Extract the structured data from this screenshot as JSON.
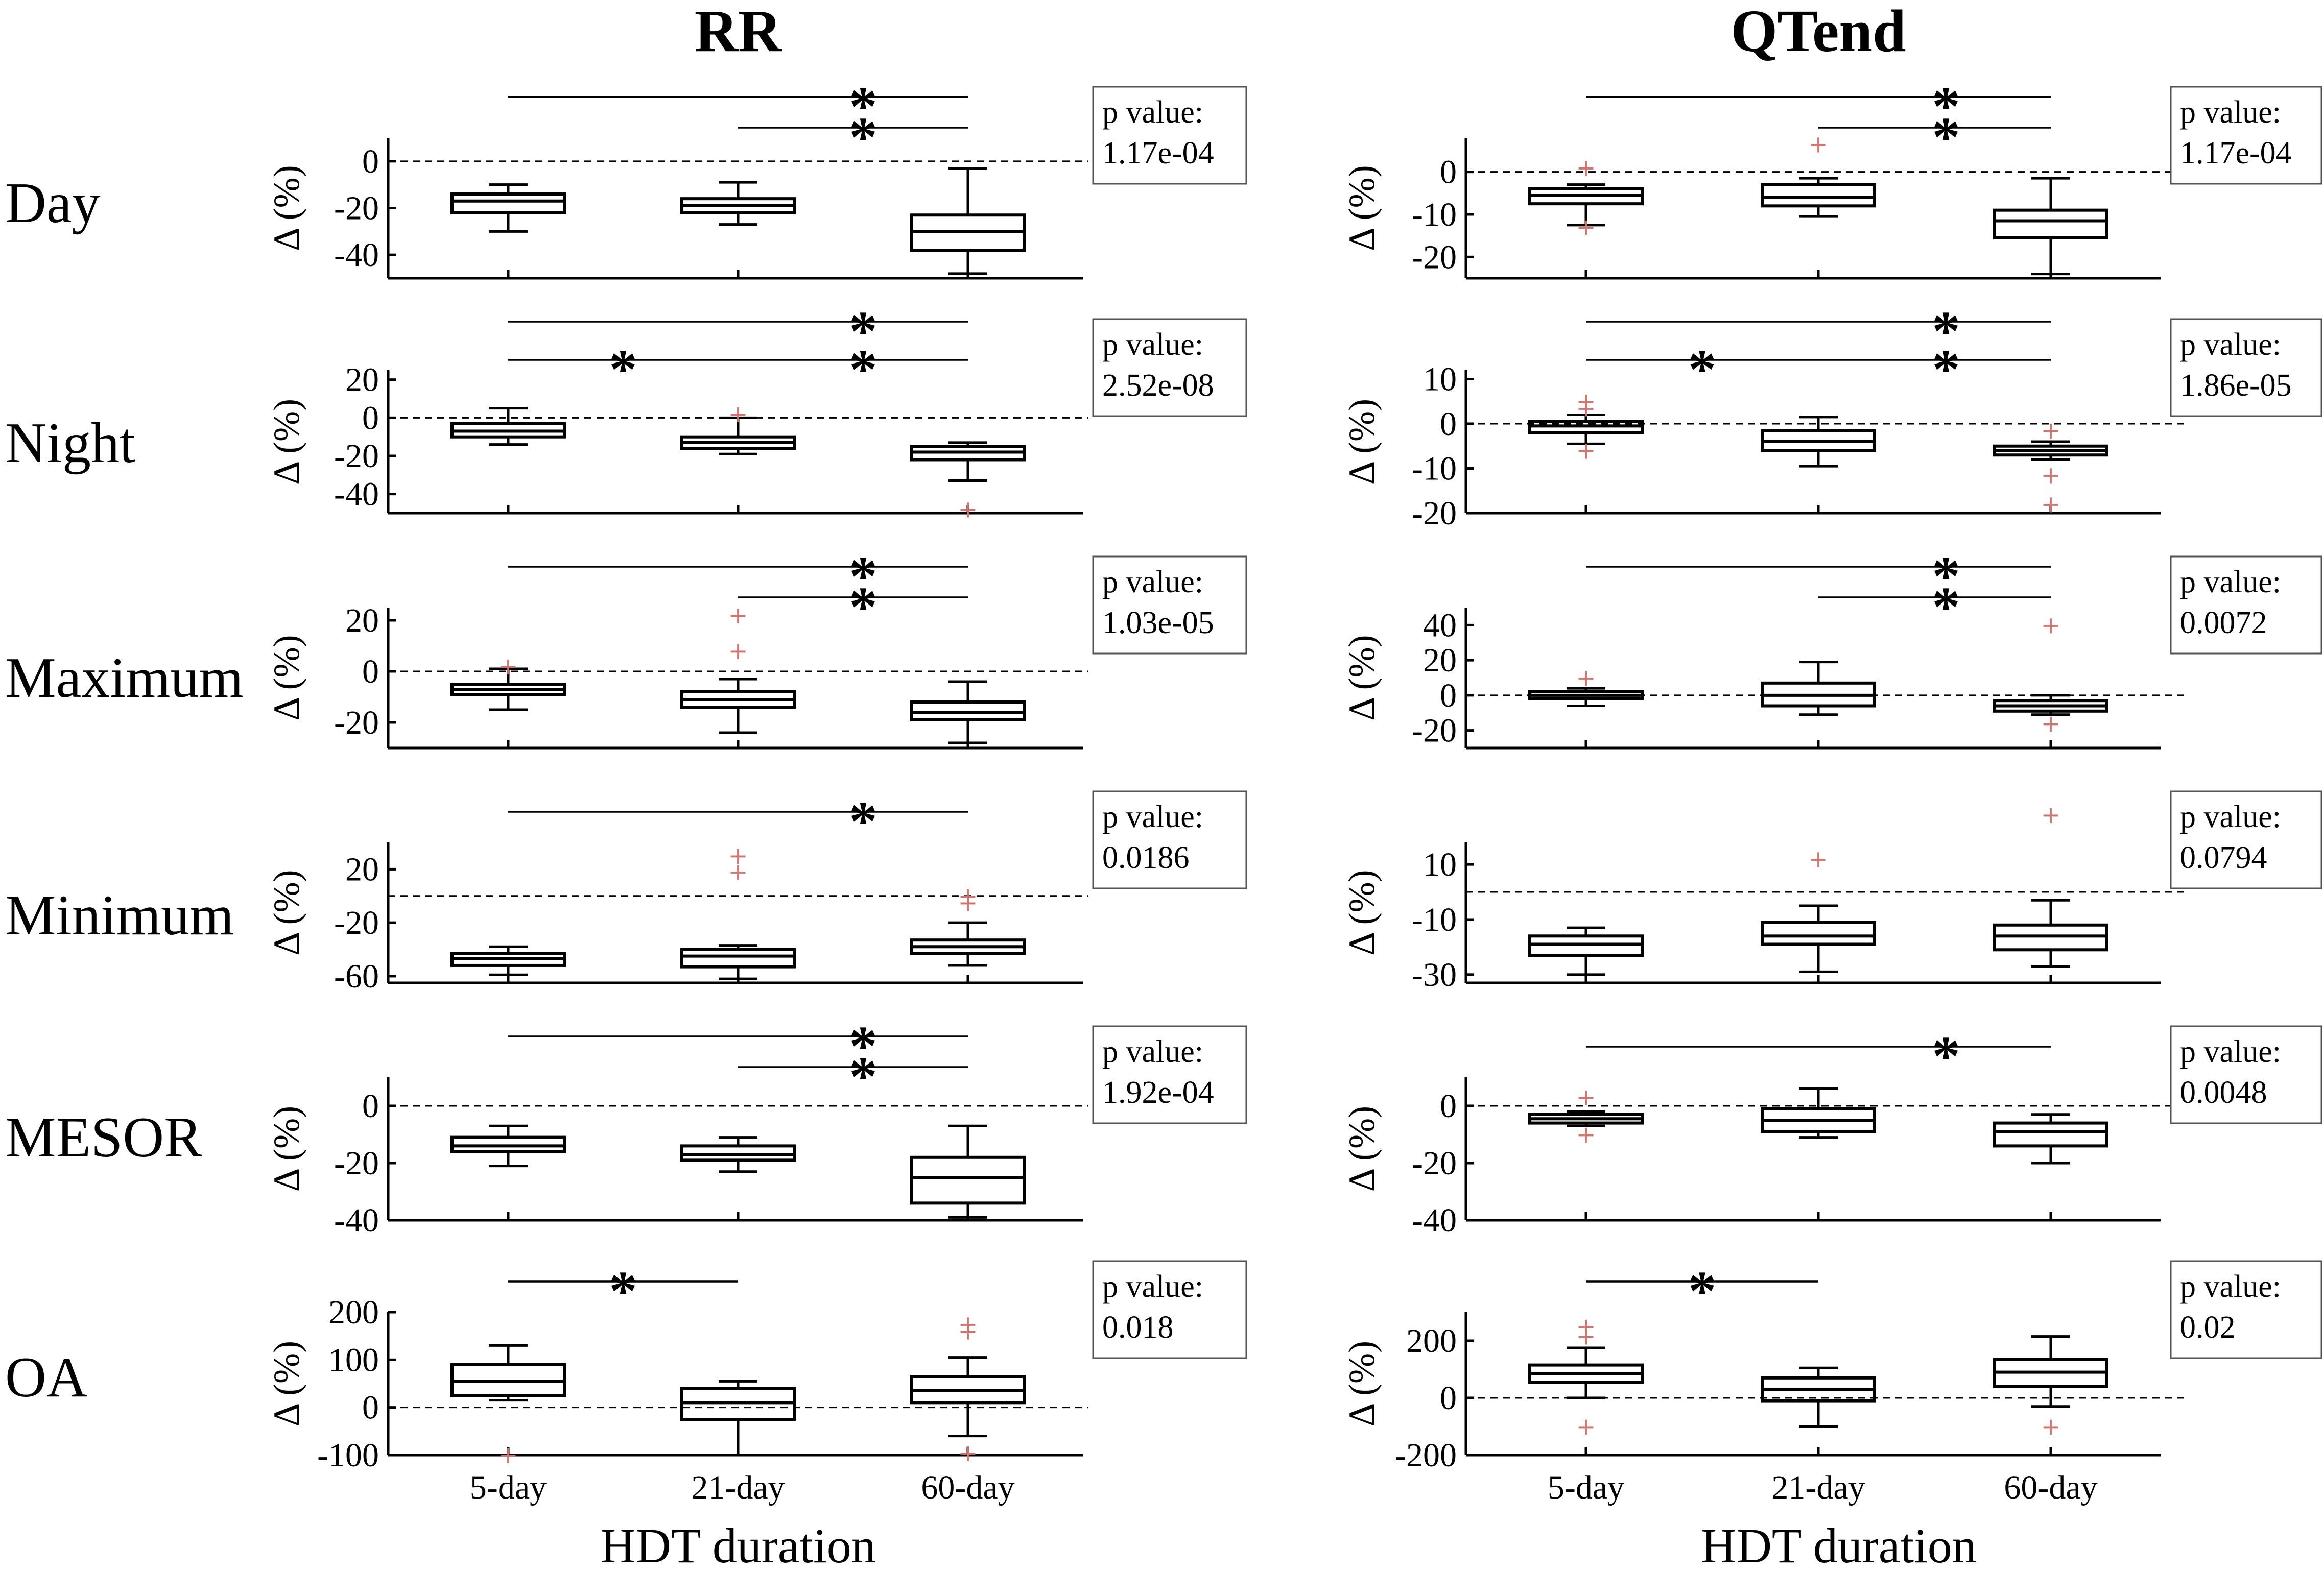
{
  "titles": {
    "left": "RR",
    "right": "QTend"
  },
  "row_labels": [
    "Day",
    "Night",
    "Maximum",
    "Minimum",
    "MESOR",
    "OA"
  ],
  "xlabel": "HDT duration",
  "ylabel": "Δ (%)",
  "pvalue_label": "p value:",
  "colors": {
    "outlier": "#d1736f",
    "line": "#000000"
  },
  "chart_data": [
    {
      "type": "box",
      "measure": "RR",
      "row": "Day",
      "categories": [
        "5-day",
        "21-day",
        "60-day"
      ],
      "ylim": [
        -50,
        10
      ],
      "yticks": [
        0,
        -20,
        -40
      ],
      "ytick_labels": [
        "0",
        "-20",
        "-40"
      ],
      "boxes": [
        {
          "q1": -22,
          "median": -17,
          "q3": -14,
          "whislo": -30,
          "whishi": -10,
          "outliers": []
        },
        {
          "q1": -22,
          "median": -19,
          "q3": -16,
          "whislo": -27,
          "whishi": -9,
          "outliers": []
        },
        {
          "q1": -38,
          "median": -30,
          "q3": -23,
          "whislo": -48,
          "whishi": -3,
          "outliers": []
        }
      ],
      "pvalue": "1.17e-04",
      "significance": [
        {
          "from": 0,
          "to": 2
        },
        {
          "from": 1,
          "to": 2
        }
      ]
    },
    {
      "type": "box",
      "measure": "RR",
      "row": "Night",
      "categories": [
        "5-day",
        "21-day",
        "60-day"
      ],
      "ylim": [
        -50,
        25
      ],
      "yticks": [
        20,
        0,
        -20,
        -40
      ],
      "ytick_labels": [
        "20",
        "0",
        "-20",
        "-40"
      ],
      "boxes": [
        {
          "q1": -10,
          "median": -7,
          "q3": -3,
          "whislo": -14,
          "whishi": 5,
          "outliers": []
        },
        {
          "q1": -16,
          "median": -13,
          "q3": -10,
          "whislo": -19,
          "whishi": 0,
          "outliers": [
            2
          ]
        },
        {
          "q1": -22,
          "median": -18,
          "q3": -15,
          "whislo": -33,
          "whishi": -13,
          "outliers": [
            -48
          ]
        }
      ],
      "pvalue": "2.52e-08",
      "significance": [
        {
          "from": 0,
          "to": 2
        },
        {
          "from": 0,
          "to": 1
        },
        {
          "from": 1,
          "to": 2
        }
      ]
    },
    {
      "type": "box",
      "measure": "RR",
      "row": "Maximum",
      "categories": [
        "5-day",
        "21-day",
        "60-day"
      ],
      "ylim": [
        -30,
        25
      ],
      "yticks": [
        20,
        0,
        -20
      ],
      "ytick_labels": [
        "20",
        "0",
        "-20"
      ],
      "boxes": [
        {
          "q1": -9,
          "median": -7,
          "q3": -5,
          "whislo": -15,
          "whishi": 1,
          "outliers": [
            2
          ]
        },
        {
          "q1": -14,
          "median": -11,
          "q3": -8,
          "whislo": -24,
          "whishi": -3,
          "outliers": [
            22,
            8
          ]
        },
        {
          "q1": -19,
          "median": -16,
          "q3": -12,
          "whislo": -28,
          "whishi": -4,
          "outliers": []
        }
      ],
      "pvalue": "1.03e-05",
      "significance": [
        {
          "from": 0,
          "to": 2
        },
        {
          "from": 1,
          "to": 2
        }
      ]
    },
    {
      "type": "box",
      "measure": "RR",
      "row": "Minimum",
      "categories": [
        "5-day",
        "21-day",
        "60-day"
      ],
      "ylim": [
        -65,
        40
      ],
      "yticks": [
        20,
        -20,
        -60
      ],
      "ytick_labels": [
        "20",
        "-20",
        "-60"
      ],
      "boxes": [
        {
          "q1": -52,
          "median": -47,
          "q3": -43,
          "whislo": -59,
          "whishi": -38,
          "outliers": []
        },
        {
          "q1": -53,
          "median": -45,
          "q3": -40,
          "whislo": -62,
          "whishi": -37,
          "outliers": [
            30,
            18
          ]
        },
        {
          "q1": -43,
          "median": -38,
          "q3": -33,
          "whislo": -52,
          "whishi": -20,
          "outliers": [
            -5,
            0
          ]
        }
      ],
      "pvalue": "0.0186",
      "significance": [
        {
          "from": 0,
          "to": 2
        }
      ]
    },
    {
      "type": "box",
      "measure": "RR",
      "row": "MESOR",
      "categories": [
        "5-day",
        "21-day",
        "60-day"
      ],
      "ylim": [
        -40,
        10
      ],
      "yticks": [
        0,
        -20,
        -40
      ],
      "ytick_labels": [
        "0",
        "-20",
        "-40"
      ],
      "boxes": [
        {
          "q1": -16,
          "median": -14,
          "q3": -11,
          "whislo": -21,
          "whishi": -7,
          "outliers": []
        },
        {
          "q1": -19,
          "median": -17,
          "q3": -14,
          "whislo": -23,
          "whishi": -11,
          "outliers": []
        },
        {
          "q1": -34,
          "median": -25,
          "q3": -18,
          "whislo": -39,
          "whishi": -7,
          "outliers": []
        }
      ],
      "pvalue": "1.92e-04",
      "significance": [
        {
          "from": 0,
          "to": 2
        },
        {
          "from": 1,
          "to": 2
        }
      ]
    },
    {
      "type": "box",
      "measure": "RR",
      "row": "OA",
      "categories": [
        "5-day",
        "21-day",
        "60-day"
      ],
      "ylim": [
        -100,
        200
      ],
      "yticks": [
        200,
        100,
        0,
        -100
      ],
      "ytick_labels": [
        "200",
        "100",
        "0",
        "-100"
      ],
      "boxes": [
        {
          "q1": 25,
          "median": 55,
          "q3": 90,
          "whislo": 15,
          "whishi": 130,
          "outliers": [
            -100
          ]
        },
        {
          "q1": -25,
          "median": 10,
          "q3": 40,
          "whislo": -100,
          "whishi": 55,
          "outliers": []
        },
        {
          "q1": 10,
          "median": 35,
          "q3": 65,
          "whislo": -60,
          "whishi": 105,
          "outliers": [
            175,
            160,
            -95
          ]
        }
      ],
      "pvalue": "0.018",
      "significance": [
        {
          "from": 0,
          "to": 1
        }
      ]
    },
    {
      "type": "box",
      "measure": "QTend",
      "row": "Day",
      "categories": [
        "5-day",
        "21-day",
        "60-day"
      ],
      "ylim": [
        -25,
        8
      ],
      "yticks": [
        0,
        -10,
        -20
      ],
      "ytick_labels": [
        "0",
        "-10",
        "-20"
      ],
      "boxes": [
        {
          "q1": -7.5,
          "median": -5.5,
          "q3": -4,
          "whislo": -12.5,
          "whishi": -3,
          "outliers": [
            1,
            -13
          ]
        },
        {
          "q1": -8,
          "median": -6,
          "q3": -3,
          "whislo": -10.5,
          "whishi": -1.5,
          "outliers": [
            6.5
          ]
        },
        {
          "q1": -15.5,
          "median": -11.5,
          "q3": -9,
          "whislo": -24,
          "whishi": -1.5,
          "outliers": []
        }
      ],
      "pvalue": "1.17e-04",
      "significance": [
        {
          "from": 0,
          "to": 2
        },
        {
          "from": 1,
          "to": 2
        }
      ]
    },
    {
      "type": "box",
      "measure": "QTend",
      "row": "Night",
      "categories": [
        "5-day",
        "21-day",
        "60-day"
      ],
      "ylim": [
        -20,
        12
      ],
      "yticks": [
        10,
        0,
        -10,
        -20
      ],
      "ytick_labels": [
        "10",
        "0",
        "-10",
        "-20"
      ],
      "boxes": [
        {
          "q1": -2,
          "median": -0.5,
          "q3": 0.5,
          "whislo": -4.5,
          "whishi": 2,
          "outliers": [
            5,
            3.5,
            -6
          ]
        },
        {
          "q1": -6,
          "median": -4,
          "q3": -1.5,
          "whislo": -9.5,
          "whishi": 1.5,
          "outliers": []
        },
        {
          "q1": -7,
          "median": -6,
          "q3": -5,
          "whislo": -8,
          "whishi": -4,
          "outliers": [
            -1.5,
            -11.5,
            -18
          ]
        }
      ],
      "pvalue": "1.86e-05",
      "significance": [
        {
          "from": 0,
          "to": 2
        },
        {
          "from": 0,
          "to": 1
        },
        {
          "from": 1,
          "to": 2
        }
      ]
    },
    {
      "type": "box",
      "measure": "QTend",
      "row": "Maximum",
      "categories": [
        "5-day",
        "21-day",
        "60-day"
      ],
      "ylim": [
        -30,
        50
      ],
      "yticks": [
        40,
        20,
        0,
        -20
      ],
      "ytick_labels": [
        "40",
        "20",
        "0",
        "-20"
      ],
      "boxes": [
        {
          "q1": -2,
          "median": 0,
          "q3": 2,
          "whislo": -6,
          "whishi": 4,
          "outliers": [
            10
          ]
        },
        {
          "q1": -6,
          "median": 0,
          "q3": 7,
          "whislo": -11,
          "whishi": 19,
          "outliers": []
        },
        {
          "q1": -9,
          "median": -6,
          "q3": -3,
          "whislo": -11,
          "whishi": 0,
          "outliers": [
            40,
            -16
          ]
        }
      ],
      "pvalue": "0.0072",
      "significance": [
        {
          "from": 0,
          "to": 2
        },
        {
          "from": 1,
          "to": 2
        }
      ]
    },
    {
      "type": "box",
      "measure": "QTend",
      "row": "Minimum",
      "categories": [
        "5-day",
        "21-day",
        "60-day"
      ],
      "ylim": [
        -33,
        18
      ],
      "yticks": [
        10,
        -10,
        -30
      ],
      "ytick_labels": [
        "10",
        "-10",
        "-30"
      ],
      "boxes": [
        {
          "q1": -23,
          "median": -19,
          "q3": -16,
          "whislo": -30,
          "whishi": -13,
          "outliers": []
        },
        {
          "q1": -19,
          "median": -16,
          "q3": -11,
          "whislo": -29,
          "whishi": -5,
          "outliers": [
            12
          ]
        },
        {
          "q1": -21,
          "median": -16,
          "q3": -12,
          "whislo": -27,
          "whishi": -3,
          "outliers": [
            28
          ]
        }
      ],
      "pvalue": "0.0794",
      "significance": []
    },
    {
      "type": "box",
      "measure": "QTend",
      "row": "MESOR",
      "categories": [
        "5-day",
        "21-day",
        "60-day"
      ],
      "ylim": [
        -40,
        10
      ],
      "yticks": [
        0,
        -20,
        -40
      ],
      "ytick_labels": [
        "0",
        "-20",
        "-40"
      ],
      "boxes": [
        {
          "q1": -6,
          "median": -4.5,
          "q3": -3,
          "whislo": -7,
          "whishi": -2,
          "outliers": [
            3,
            -10
          ]
        },
        {
          "q1": -9,
          "median": -5,
          "q3": -1,
          "whislo": -11,
          "whishi": 6,
          "outliers": []
        },
        {
          "q1": -14,
          "median": -9,
          "q3": -6,
          "whislo": -20,
          "whishi": -3,
          "outliers": []
        }
      ],
      "pvalue": "0.0048",
      "significance": [
        {
          "from": 0,
          "to": 2
        }
      ]
    },
    {
      "type": "box",
      "measure": "QTend",
      "row": "OA",
      "categories": [
        "5-day",
        "21-day",
        "60-day"
      ],
      "ylim": [
        -200,
        300
      ],
      "yticks": [
        200,
        0,
        -200
      ],
      "ytick_labels": [
        "200",
        "0",
        "-200"
      ],
      "boxes": [
        {
          "q1": 55,
          "median": 85,
          "q3": 115,
          "whislo": 0,
          "whishi": 175,
          "outliers": [
            250,
            215,
            -100
          ]
        },
        {
          "q1": -10,
          "median": 30,
          "q3": 70,
          "whislo": -100,
          "whishi": 105,
          "outliers": []
        },
        {
          "q1": 40,
          "median": 90,
          "q3": 135,
          "whislo": -30,
          "whishi": 215,
          "outliers": [
            -100
          ]
        }
      ],
      "pvalue": "0.02",
      "significance": [
        {
          "from": 0,
          "to": 1
        }
      ]
    }
  ]
}
